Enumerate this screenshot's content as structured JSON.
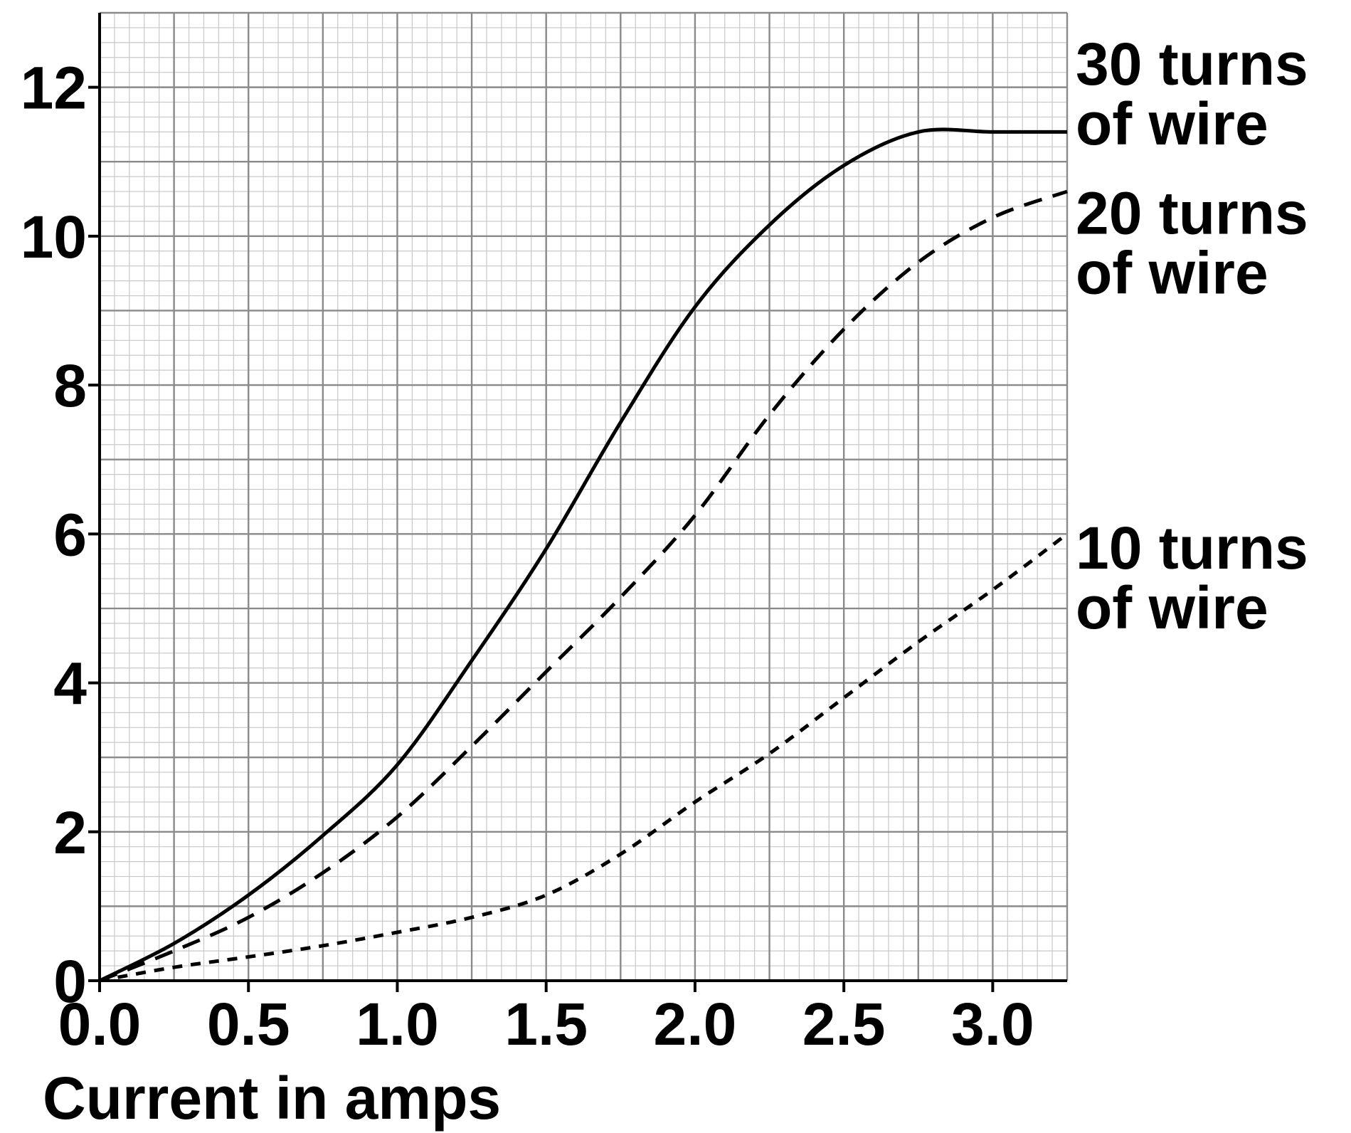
{
  "chart_data": {
    "type": "line",
    "title": "",
    "xlabel": "Current in amps",
    "ylabel": "",
    "xlim": [
      0,
      3.25
    ],
    "ylim": [
      0,
      13
    ],
    "grid": true,
    "x_ticks": [
      "0.0",
      "0.5",
      "1.0",
      "1.5",
      "2.0",
      "2.5",
      "3.0"
    ],
    "y_ticks": [
      "0",
      "2",
      "4",
      "6",
      "8",
      "10",
      "12"
    ],
    "series": [
      {
        "name_line1": "30 turns",
        "name_line2": "of wire",
        "style": "solid",
        "x": [
          0,
          0.25,
          0.5,
          0.75,
          1.0,
          1.25,
          1.5,
          1.75,
          2.0,
          2.25,
          2.5,
          2.75,
          3.0,
          3.25
        ],
        "y": [
          0,
          0.5,
          1.15,
          1.95,
          2.9,
          4.3,
          5.8,
          7.5,
          9.05,
          10.15,
          10.95,
          11.4,
          11.4,
          11.4
        ]
      },
      {
        "name_line1": "20 turns",
        "name_line2": "of wire",
        "style": "dashed",
        "x": [
          0,
          0.25,
          0.5,
          0.75,
          1.0,
          1.25,
          1.5,
          1.75,
          2.0,
          2.25,
          2.5,
          2.75,
          3.0,
          3.25
        ],
        "y": [
          0,
          0.4,
          0.85,
          1.45,
          2.2,
          3.15,
          4.15,
          5.15,
          6.25,
          7.6,
          8.75,
          9.65,
          10.25,
          10.6
        ]
      },
      {
        "name_line1": "10 turns",
        "name_line2": "of wire",
        "style": "short-dashed",
        "x": [
          0,
          0.25,
          0.5,
          0.75,
          1.0,
          1.25,
          1.5,
          1.75,
          2.0,
          2.25,
          2.5,
          2.75,
          3.0,
          3.25
        ],
        "y": [
          0,
          0.18,
          0.32,
          0.47,
          0.65,
          0.85,
          1.15,
          1.7,
          2.4,
          3.05,
          3.8,
          4.55,
          5.25,
          6.0
        ]
      }
    ]
  }
}
